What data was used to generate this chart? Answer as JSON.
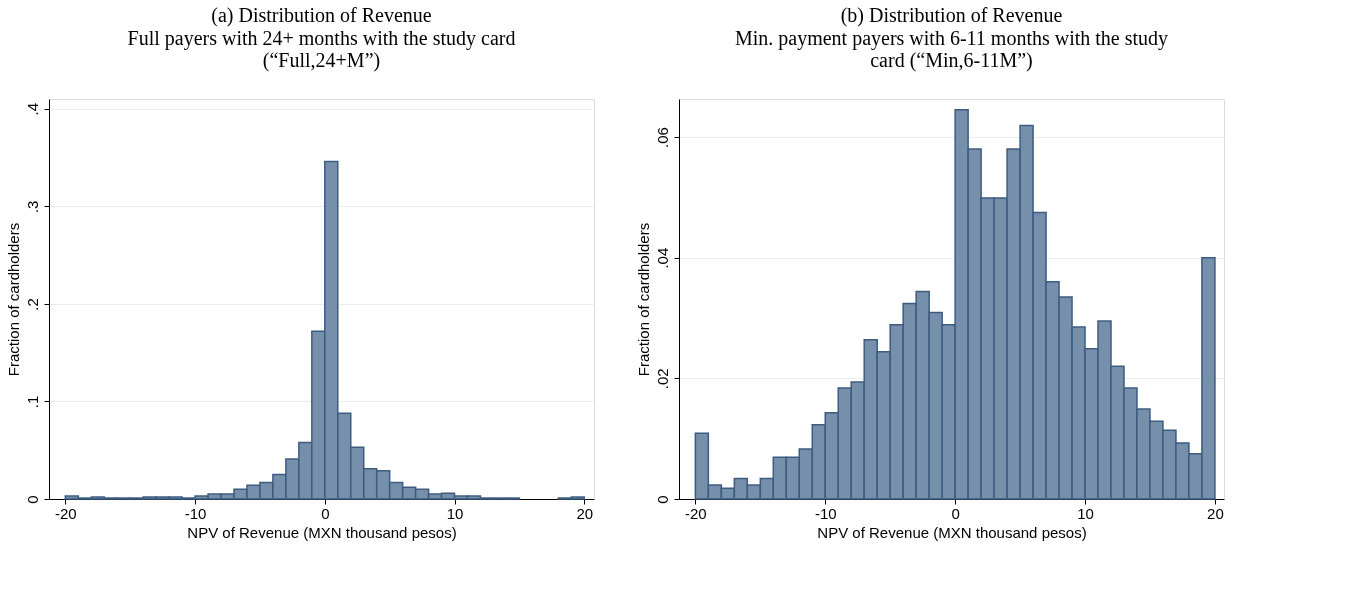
{
  "chart_data": [
    {
      "type": "histogram",
      "title": "(a) Distribution of Revenue",
      "subtitle": "Full payers with 24+ months with the study card (“Full,24+M”)",
      "xlabel": "NPV of Revenue (MXN thousand pesos)",
      "ylabel": "Fraction of cardholders",
      "color": "#768faa",
      "grid": "y",
      "bins": [
        -20,
        -19,
        -18,
        -17,
        -16,
        -15,
        -14,
        -13,
        -12,
        -11,
        -10,
        -9,
        -8,
        -7,
        -6,
        -5,
        -4,
        -3,
        -2,
        -1,
        0,
        1,
        2,
        3,
        4,
        5,
        6,
        7,
        8,
        9,
        10,
        11,
        12,
        13,
        14,
        15,
        16,
        17,
        18,
        19,
        20
      ],
      "values": [
        0.003,
        0.001,
        0.002,
        0.001,
        0.001,
        0.001,
        0.002,
        0.002,
        0.002,
        0.001,
        0.003,
        0.005,
        0.005,
        0.01,
        0.014,
        0.017,
        0.025,
        0.041,
        0.058,
        0.172,
        0.346,
        0.088,
        0.053,
        0.031,
        0.029,
        0.017,
        0.012,
        0.01,
        0.005,
        0.006,
        0.003,
        0.003,
        0.001,
        0.001,
        0.001,
        null,
        null,
        null,
        0.001,
        0.002
      ],
      "xlim": [
        -21.26,
        20.75
      ],
      "xticks": [
        -20,
        -10,
        0,
        10,
        20
      ],
      "ylim": [
        0,
        0.41
      ],
      "yticks": [
        0,
        {
          "value": 0.1,
          "label": ".1"
        },
        {
          "value": 0.2,
          "label": ".2"
        },
        {
          "value": 0.3,
          "label": ".3"
        },
        {
          "value": 0.4,
          "label": ".4"
        }
      ]
    },
    {
      "type": "histogram",
      "title": "(b) Distribution of Revenue",
      "subtitle": "Min. payment payers with 6-11 months with the study card (“Min,6-11M”)",
      "xlabel": "NPV of Revenue (MXN thousand pesos)",
      "ylabel": "Fraction of cardholders",
      "color": "#768faa",
      "grid": "y",
      "bins": [
        -20,
        -19,
        -18,
        -17,
        -16,
        -15,
        -14,
        -13,
        -12,
        -11,
        -10,
        -9,
        -8,
        -7,
        -6,
        -5,
        -4,
        -3,
        -2,
        -1,
        0,
        1,
        2,
        3,
        4,
        5,
        6,
        7,
        8,
        9,
        10,
        11,
        12,
        13,
        14,
        15,
        16,
        17,
        18,
        19,
        20
      ],
      "values": [
        0.0109,
        0.0023,
        0.0018,
        0.0034,
        0.0023,
        0.0034,
        0.0069,
        0.0069,
        0.0083,
        0.0123,
        0.0143,
        0.0184,
        0.0194,
        0.0264,
        0.0244,
        0.0289,
        0.0324,
        0.0344,
        0.0309,
        0.0289,
        0.0645,
        0.058,
        0.0499,
        0.0499,
        0.058,
        0.0619,
        0.0475,
        0.036,
        0.0335,
        0.0285,
        0.0249,
        0.0295,
        0.022,
        0.0184,
        0.0149,
        0.0129,
        0.0114,
        0.0093,
        0.0075,
        0.04
      ],
      "xlim": [
        -21.26,
        20.7
      ],
      "xticks": [
        -20,
        -10,
        0,
        10,
        20
      ],
      "ylim": [
        0,
        0.0663
      ],
      "yticks": [
        0,
        {
          "value": 0.02,
          "label": ".02"
        },
        {
          "value": 0.04,
          "label": ".04"
        },
        {
          "value": 0.06,
          "label": ".06"
        }
      ]
    }
  ]
}
